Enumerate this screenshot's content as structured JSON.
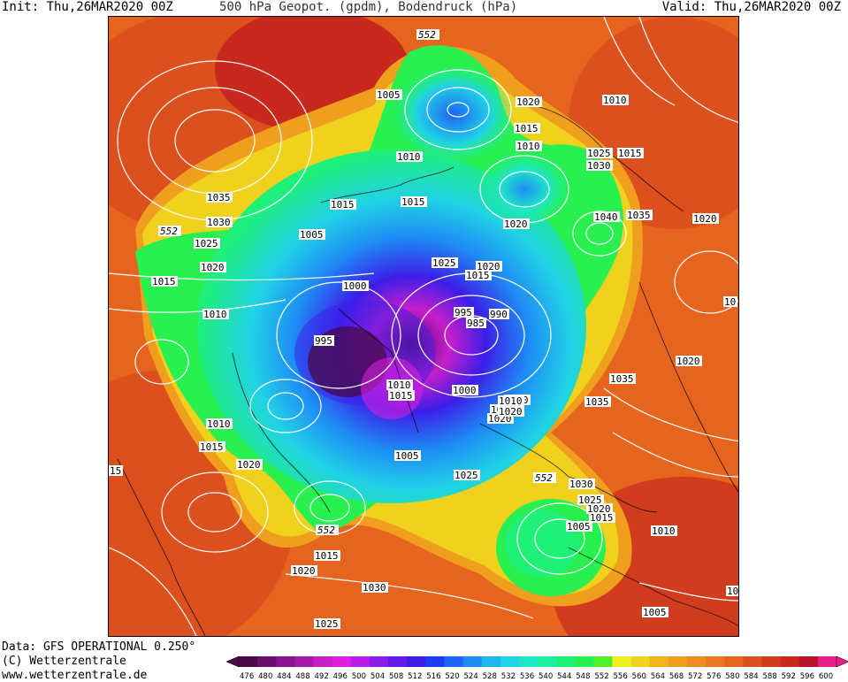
{
  "header": {
    "init": "Init: Thu,26MAR2020 00Z",
    "title": "500 hPa Geopot. (gpdm), Bodendruck (hPa)",
    "valid": "Valid: Thu,26MAR2020 00Z"
  },
  "footer": {
    "data_source": "Data: GFS OPERATIONAL 0.250°",
    "copyright": "(C) Wetterzentrale",
    "website": "www.wetterzentrale.de"
  },
  "colorbar": {
    "ticks": [
      "476",
      "480",
      "484",
      "488",
      "492",
      "496",
      "500",
      "504",
      "508",
      "512",
      "516",
      "520",
      "524",
      "528",
      "532",
      "536",
      "540",
      "544",
      "548",
      "552",
      "556",
      "560",
      "564",
      "568",
      "572",
      "576",
      "580",
      "584",
      "588",
      "592",
      "596",
      "600"
    ],
    "colors": [
      "#4a0a4a",
      "#6a0f6a",
      "#8a1490",
      "#a81aaa",
      "#c81ecc",
      "#e020e0",
      "#b81ee6",
      "#8c1ee8",
      "#6418ea",
      "#3c1ee8",
      "#1e3cf0",
      "#1e64f5",
      "#1e8cf5",
      "#20b4f0",
      "#20d2e6",
      "#1ee6c8",
      "#1ef0a0",
      "#1ef078",
      "#28f050",
      "#50f028",
      "#f0f01e",
      "#f0d21e",
      "#f0b41e",
      "#f09e1e",
      "#f08c1e",
      "#eb781e",
      "#e6641e",
      "#dc501e",
      "#d23c1e",
      "#c8281e",
      "#b41428",
      "#e61e8c"
    ]
  },
  "map": {
    "contour_label_552": "552",
    "pressure_labels": [
      {
        "id": "p01",
        "text": "1005"
      },
      {
        "id": "p02",
        "text": "1020"
      },
      {
        "id": "p03",
        "text": "1010"
      },
      {
        "id": "p04",
        "text": "1015"
      },
      {
        "id": "p05",
        "text": "1010"
      },
      {
        "id": "p06",
        "text": "1010"
      },
      {
        "id": "p07",
        "text": "1025"
      },
      {
        "id": "p08",
        "text": "1030"
      },
      {
        "id": "p09",
        "text": "1015"
      },
      {
        "id": "p10",
        "text": "1035"
      },
      {
        "id": "p11",
        "text": "1030"
      },
      {
        "id": "p12",
        "text": "1025"
      },
      {
        "id": "p13",
        "text": "1020"
      },
      {
        "id": "p14",
        "text": "1015"
      },
      {
        "id": "p15",
        "text": "1010"
      },
      {
        "id": "p16",
        "text": "1005"
      },
      {
        "id": "p17",
        "text": "1015"
      },
      {
        "id": "p18",
        "text": "1015"
      },
      {
        "id": "p19",
        "text": "1020"
      },
      {
        "id": "p20",
        "text": "1040"
      },
      {
        "id": "p21",
        "text": "1035"
      },
      {
        "id": "p22",
        "text": "1020"
      },
      {
        "id": "p23",
        "text": "1025"
      },
      {
        "id": "p24",
        "text": "1020"
      },
      {
        "id": "p25",
        "text": "1015"
      },
      {
        "id": "p26",
        "text": "1000"
      },
      {
        "id": "p27",
        "text": "995"
      },
      {
        "id": "p28",
        "text": "985"
      },
      {
        "id": "p29",
        "text": "990"
      },
      {
        "id": "p30",
        "text": "10"
      },
      {
        "id": "p31",
        "text": "995"
      },
      {
        "id": "p32",
        "text": "1020"
      },
      {
        "id": "p33",
        "text": "1010"
      },
      {
        "id": "p34",
        "text": "1015"
      },
      {
        "id": "p35",
        "text": "1000"
      },
      {
        "id": "p36",
        "text": "1010"
      },
      {
        "id": "p37",
        "text": "1015"
      },
      {
        "id": "p38",
        "text": "1020"
      },
      {
        "id": "p39",
        "text": "1035"
      },
      {
        "id": "p40",
        "text": "1035"
      },
      {
        "id": "p41",
        "text": "1010"
      },
      {
        "id": "p42",
        "text": "1015"
      },
      {
        "id": "p43",
        "text": "1005"
      },
      {
        "id": "p44",
        "text": "1020"
      },
      {
        "id": "p45",
        "text": "15"
      },
      {
        "id": "p46",
        "text": "1025"
      },
      {
        "id": "p47",
        "text": "1030"
      },
      {
        "id": "p48",
        "text": "1025"
      },
      {
        "id": "p49",
        "text": "1020"
      },
      {
        "id": "p50",
        "text": "1015"
      },
      {
        "id": "p51",
        "text": "1005"
      },
      {
        "id": "p52",
        "text": "1010"
      },
      {
        "id": "p53",
        "text": "1015"
      },
      {
        "id": "p54",
        "text": "1020"
      },
      {
        "id": "p55",
        "text": "1030"
      },
      {
        "id": "p56",
        "text": "1025"
      },
      {
        "id": "p57",
        "text": "10"
      },
      {
        "id": "p58",
        "text": "1005"
      },
      {
        "id": "p59",
        "text": "1020"
      },
      {
        "id": "p60",
        "text": "1010"
      }
    ]
  }
}
